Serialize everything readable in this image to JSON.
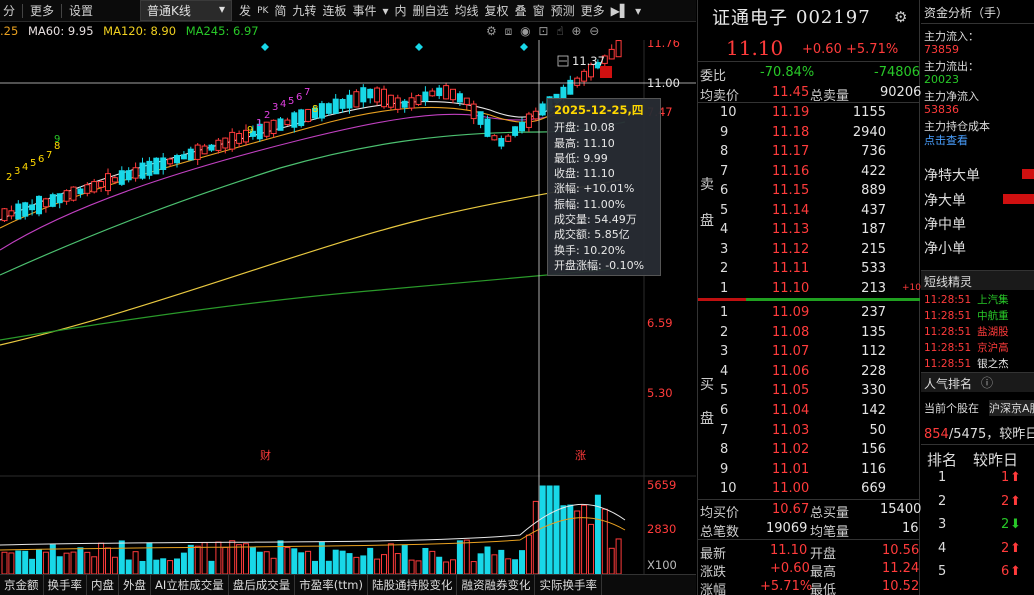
{
  "toolbar": {
    "items_left": [
      "分",
      "更多",
      "设置"
    ],
    "kline_type": "普通K线",
    "items_right": [
      "发",
      "PK",
      "简",
      "九转",
      "连板",
      "事件",
      "内",
      "删自选",
      "均线",
      "复权",
      "叠",
      "窗",
      "预测",
      "更多"
    ]
  },
  "ma_legend": [
    {
      "label": ".25",
      "color": "#e8a020"
    },
    {
      "label": "MA60: 9.95",
      "color": "#e8e0e0"
    },
    {
      "label": "MA120: 8.90",
      "color": "#f0d020"
    },
    {
      "label": "MA245: 6.97",
      "color": "#28c828"
    }
  ],
  "chart_data": {
    "type": "candlestick",
    "price_ticks": [
      "11.76",
      "11.00",
      "7.47",
      "6.59",
      "5.30"
    ],
    "current_price_label": "11.37",
    "volume_ticks": [
      "5659",
      "2830",
      "X100"
    ],
    "markers": [
      "财",
      "涨"
    ],
    "nine_turn_labels": [
      "2",
      "3",
      "4",
      "5",
      "6",
      "7",
      "8",
      "9",
      "1",
      "2",
      "3",
      "4",
      "5",
      "6",
      "7",
      "8",
      "9"
    ]
  },
  "tooltip": {
    "date": "2025-12-25,四",
    "lines": [
      "开盘: 10.08",
      "最高: 11.10",
      "最低: 9.99",
      "收盘: 11.10",
      "涨幅: +10.01%",
      "振幅: 11.00%",
      "成交量: 54.49万",
      "成交额: 5.85亿",
      "换手: 10.20%",
      "开盘涨幅: -0.10%"
    ]
  },
  "bottom_tabs": [
    "京金额",
    "换手率",
    "内盘",
    "外盘",
    "AI立桩成交量",
    "盘后成交量",
    "市盈率(ttm)",
    "陆股通持股变化",
    "融资融券变化",
    "实际换手率"
  ],
  "stock": {
    "name": "证通电子",
    "code": "002197",
    "price": "11.10",
    "change": "+0.60",
    "pct": "+5.71%"
  },
  "order_book": {
    "weibi_label": "委比",
    "weibi_pct": "-70.84%",
    "weibi_val": "-74806",
    "avg_sell_label": "均卖价",
    "avg_sell": "11.45",
    "total_sell_label": "总卖量",
    "total_sell": "90206",
    "sell_side_label": [
      "卖",
      "盘"
    ],
    "buy_side_label": [
      "买",
      "盘"
    ],
    "sells": [
      {
        "n": "10",
        "price": "11.19",
        "vol": "1155"
      },
      {
        "n": "9",
        "price": "11.18",
        "vol": "2940"
      },
      {
        "n": "8",
        "price": "11.17",
        "vol": "736"
      },
      {
        "n": "7",
        "price": "11.16",
        "vol": "422"
      },
      {
        "n": "6",
        "price": "11.15",
        "vol": "889"
      },
      {
        "n": "5",
        "price": "11.14",
        "vol": "437"
      },
      {
        "n": "4",
        "price": "11.13",
        "vol": "187"
      },
      {
        "n": "3",
        "price": "11.12",
        "vol": "215"
      },
      {
        "n": "2",
        "price": "11.11",
        "vol": "533"
      },
      {
        "n": "1",
        "price": "11.10",
        "vol": "213",
        "extra": "+10"
      }
    ],
    "buys": [
      {
        "n": "1",
        "price": "11.09",
        "vol": "237"
      },
      {
        "n": "2",
        "price": "11.08",
        "vol": "135"
      },
      {
        "n": "3",
        "price": "11.07",
        "vol": "112"
      },
      {
        "n": "4",
        "price": "11.06",
        "vol": "228"
      },
      {
        "n": "5",
        "price": "11.05",
        "vol": "330"
      },
      {
        "n": "6",
        "price": "11.04",
        "vol": "142"
      },
      {
        "n": "7",
        "price": "11.03",
        "vol": "50"
      },
      {
        "n": "8",
        "price": "11.02",
        "vol": "156"
      },
      {
        "n": "9",
        "price": "11.01",
        "vol": "116"
      },
      {
        "n": "10",
        "price": "11.00",
        "vol": "669"
      }
    ],
    "avg_buy_label": "均买价",
    "avg_buy": "10.67",
    "total_buy_label": "总买量",
    "total_buy": "15400",
    "total_count_label": "总笔数",
    "total_count": "19069",
    "avg_count_label": "均笔量",
    "avg_count": "16",
    "latest_label": "最新",
    "latest": "11.10",
    "open_label": "开盘",
    "open": "10.56",
    "change_label": "涨跌",
    "change": "+0.60",
    "high_label": "最高",
    "high": "11.24",
    "pct_label": "涨幅",
    "pct": "+5.71%",
    "low_label": "最低",
    "low": "10.52"
  },
  "right_panel": {
    "title": "资金分析（手）",
    "inflow_label": "主力流入：",
    "inflow": "73859",
    "outflow_label": "主力流出：",
    "outflow": "20023",
    "net_label": "主力净流入",
    "net": "53836",
    "holding_label": "主力持仓成本",
    "holding_link": "点击查看",
    "net_rows": [
      "净特大单",
      "净大单",
      "净中单",
      "净小单"
    ],
    "net_bars": [
      0.3,
      0.9,
      0,
      0
    ],
    "news_title": "短线精灵",
    "news": [
      {
        "time": "11:28:51",
        "text": "上汽集",
        "color": "#28c828"
      },
      {
        "time": "11:28:51",
        "text": "中航重",
        "color": "#28c828"
      },
      {
        "time": "11:28:51",
        "text": "盐湖股",
        "color": "#ff3b3b"
      },
      {
        "time": "11:28:51",
        "text": "京沪高",
        "color": "#ff3b3b"
      },
      {
        "time": "11:28:51",
        "text": "银之杰",
        "color": "#e6e6e6"
      }
    ],
    "rank_title": "人气排名",
    "rank_desc": "当前个股在",
    "rank_scope": "沪深京A股",
    "rank_pos": "854",
    "rank_total": "/5475，较昨日",
    "rank_head_1": "排名",
    "rank_head_2": "较昨日",
    "ranks": [
      {
        "n": "1",
        "d": "1",
        "up": true
      },
      {
        "n": "2",
        "d": "2",
        "up": true
      },
      {
        "n": "3",
        "d": "2",
        "up": false
      },
      {
        "n": "4",
        "d": "2",
        "up": true
      },
      {
        "n": "5",
        "d": "6",
        "up": true
      }
    ]
  }
}
